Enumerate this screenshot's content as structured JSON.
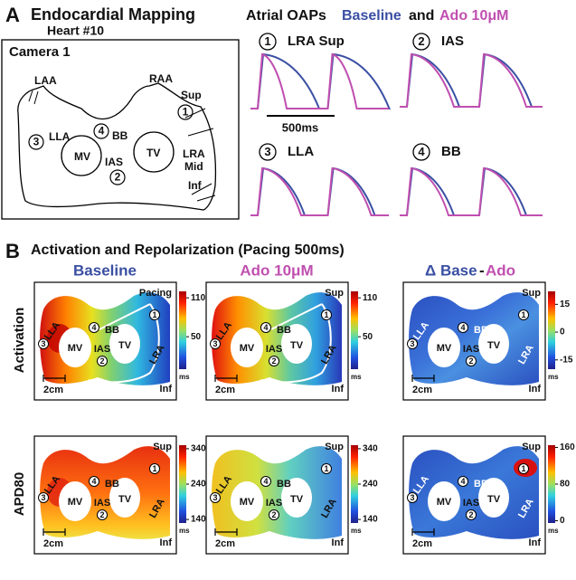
{
  "panel_a": {
    "label": "A",
    "title": "Endocardial Mapping",
    "subtitle": "Heart #10",
    "diagram": {
      "camera": "Camera 1",
      "labels": {
        "laa": "LAA",
        "raa": "RAA",
        "sup": "Sup",
        "lla": "LLA",
        "bb": "BB",
        "mv": "MV",
        "ias": "IAS",
        "tv": "TV",
        "lra": "LRA",
        "mid": "Mid",
        "inf": "Inf"
      },
      "sites": [
        "1",
        "2",
        "3",
        "4"
      ]
    },
    "oaps": {
      "title": "Atrial OAPs",
      "baseline": "Baseline",
      "and": "and",
      "ado": "Ado 10μM",
      "traces": [
        {
          "site": "1",
          "name": "LRA Sup"
        },
        {
          "site": "2",
          "name": "IAS"
        },
        {
          "site": "3",
          "name": "LLA"
        },
        {
          "site": "4",
          "name": "BB"
        }
      ],
      "scale_bar": "500ms"
    }
  },
  "panel_b": {
    "label": "B",
    "title": "Activation and Repolarization (Pacing 500ms)",
    "columns": {
      "baseline": "Baseline",
      "ado": "Ado 10μM",
      "delta": "Δ Base",
      "minus": "-",
      "ado_short": "Ado"
    },
    "rows": [
      "Activation",
      "APD80"
    ],
    "map_labels": {
      "pacing": "Pacing",
      "sup": "Sup",
      "inf": "Inf",
      "lla": "LLA",
      "bb": "BB",
      "mv": "MV",
      "ias": "IAS",
      "tv": "TV",
      "lra": "LRA"
    },
    "scale_bar": "2cm",
    "unit": "ms",
    "colorbars": [
      {
        "lim": [
          0,
          120
        ],
        "ticks": [
          110,
          50
        ]
      },
      {
        "lim": [
          0,
          120
        ],
        "ticks": [
          110,
          50
        ]
      },
      {
        "lim": [
          -20,
          22
        ],
        "ticks": [
          15,
          0,
          -15
        ]
      },
      {
        "lim": [
          130,
          350
        ],
        "ticks": [
          340,
          240,
          140
        ]
      },
      {
        "lim": [
          130,
          350
        ],
        "ticks": [
          340,
          240,
          140
        ]
      },
      {
        "lim": [
          -5,
          165
        ],
        "ticks": [
          160,
          80,
          0
        ]
      }
    ]
  }
}
